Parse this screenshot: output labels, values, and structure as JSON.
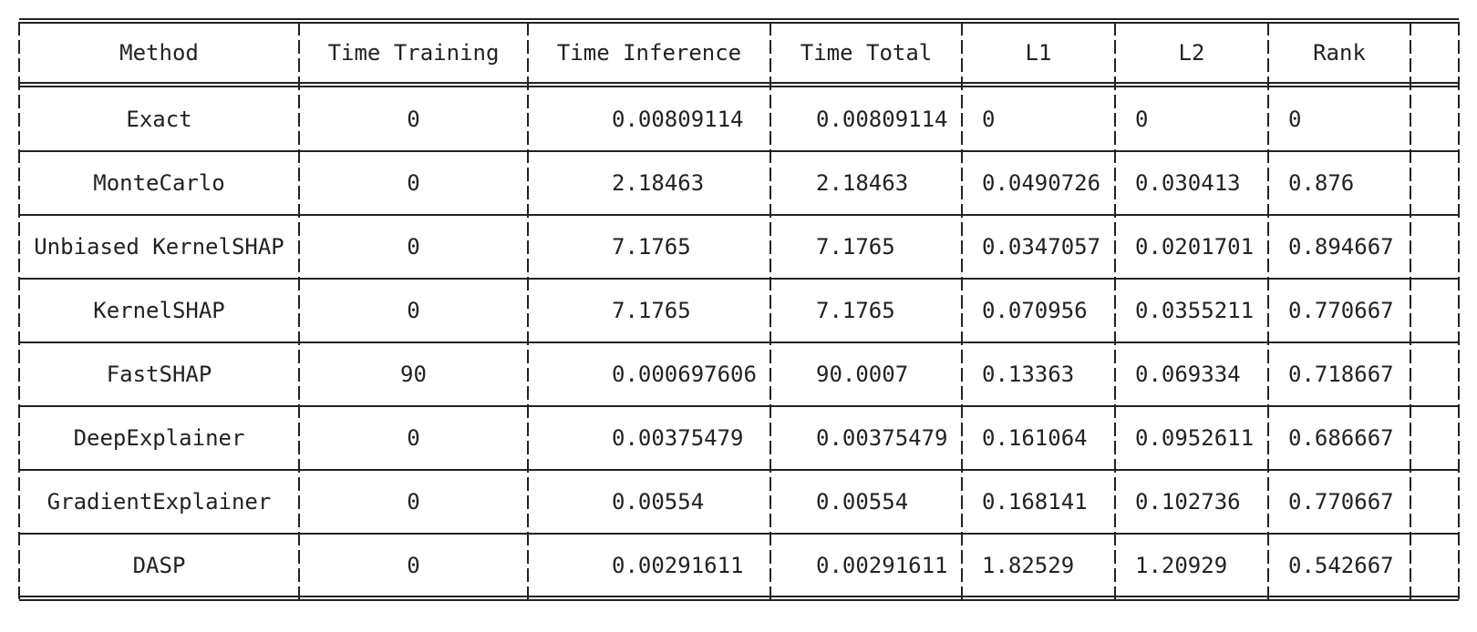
{
  "table": {
    "headers": [
      "Method",
      "Time Training",
      "Time Inference",
      "Time Total",
      "L1",
      "L2",
      "Rank"
    ],
    "rows": [
      [
        "Exact",
        "0",
        "0.00809114",
        "0.00809114",
        "0",
        "0",
        "0"
      ],
      [
        "MonteCarlo",
        "0",
        "2.18463",
        "2.18463",
        "0.0490726",
        "0.030413",
        "0.876"
      ],
      [
        "Unbiased KernelSHAP",
        "0",
        "7.1765",
        "7.1765",
        "0.0347057",
        "0.0201701",
        "0.894667"
      ],
      [
        "KernelSHAP",
        "0",
        "7.1765",
        "7.1765",
        "0.070956",
        "0.0355211",
        "0.770667"
      ],
      [
        "FastSHAP",
        "90",
        "0.000697606",
        "90.0007",
        "0.13363",
        "0.069334",
        "0.718667"
      ],
      [
        "DeepExplainer",
        "0",
        "0.00375479",
        "0.00375479",
        "0.161064",
        "0.0952611",
        "0.686667"
      ],
      [
        "GradientExplainer",
        "0",
        "0.00554",
        "0.00554",
        "0.168141",
        "0.102736",
        "0.770667"
      ],
      [
        "DASP",
        "0",
        "0.00291611",
        "0.00291611",
        "1.82529",
        "1.20929",
        "0.542667"
      ]
    ]
  }
}
